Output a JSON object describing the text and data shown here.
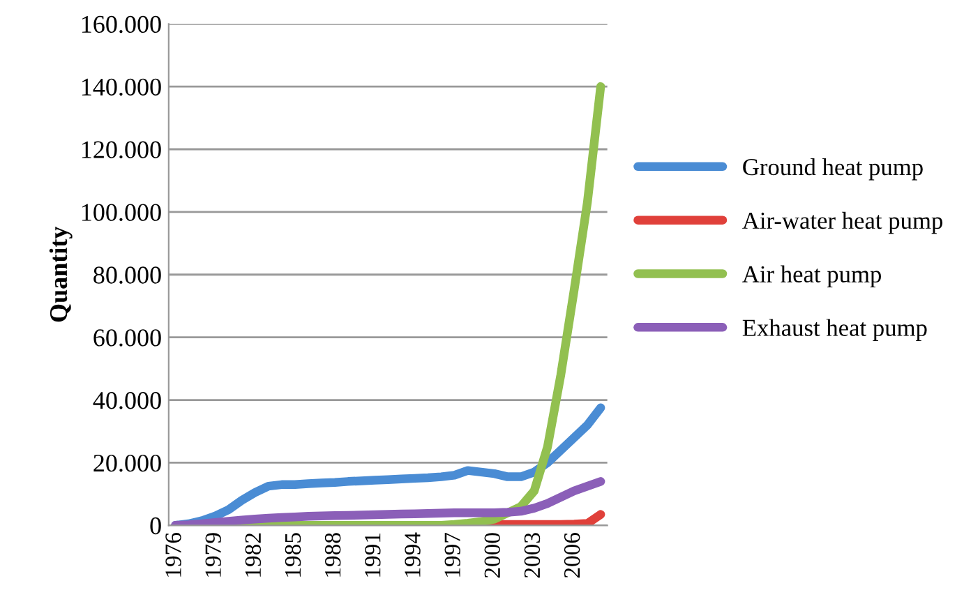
{
  "chart_data": {
    "type": "line",
    "ylabel": "Quantity",
    "categories": [
      "1976",
      null,
      null,
      "1979",
      null,
      null,
      "1982",
      null,
      null,
      "1985",
      null,
      null,
      "1988",
      null,
      null,
      "1991",
      null,
      null,
      "1994",
      null,
      null,
      "1997",
      null,
      null,
      "2000",
      null,
      null,
      "2003",
      null,
      null,
      "2006",
      null,
      null
    ],
    "series": [
      {
        "name": "Ground heat pump",
        "color": "#4a8cd4",
        "values": [
          0,
          500,
          1500,
          3000,
          5000,
          8000,
          10500,
          12500,
          13000,
          13000,
          13300,
          13500,
          13700,
          14000,
          14200,
          14400,
          14600,
          14800,
          15000,
          15200,
          15500,
          16000,
          17500,
          17000,
          16500,
          15500,
          15500,
          17000,
          20000,
          24000,
          28000,
          32000,
          37500
        ]
      },
      {
        "name": "Air-water heat pump",
        "color": "#e0403a",
        "values": [
          null,
          null,
          null,
          null,
          null,
          null,
          null,
          null,
          null,
          null,
          null,
          null,
          null,
          null,
          null,
          null,
          null,
          null,
          null,
          null,
          null,
          0,
          100,
          200,
          300,
          300,
          300,
          300,
          300,
          300,
          400,
          600,
          3500
        ]
      },
      {
        "name": "Air heat pump",
        "color": "#92c050",
        "values": [
          null,
          null,
          null,
          null,
          0,
          0,
          0,
          0,
          0,
          0,
          0,
          0,
          0,
          0,
          0,
          0,
          0,
          0,
          0,
          0,
          0,
          300,
          700,
          1200,
          2000,
          4000,
          6000,
          11000,
          25000,
          48000,
          75000,
          103000,
          140000
        ]
      },
      {
        "name": "Exhaust heat pump",
        "color": "#8b5fb8",
        "values": [
          0,
          200,
          500,
          900,
          1300,
          1700,
          2000,
          2300,
          2500,
          2700,
          2900,
          3000,
          3100,
          3200,
          3300,
          3400,
          3500,
          3600,
          3700,
          3800,
          3900,
          4000,
          4000,
          4000,
          4000,
          4200,
          4500,
          5500,
          7000,
          9000,
          11000,
          12500,
          14000
        ]
      }
    ],
    "ylim": [
      0,
      160000
    ],
    "yticks": [
      {
        "value": 0,
        "label": "0"
      },
      {
        "value": 20000,
        "label": "20.000"
      },
      {
        "value": 40000,
        "label": "40.000"
      },
      {
        "value": 60000,
        "label": "60.000"
      },
      {
        "value": 80000,
        "label": "80.000"
      },
      {
        "value": 100000,
        "label": "100.000"
      },
      {
        "value": 120000,
        "label": "120.000"
      },
      {
        "value": 140000,
        "label": "140.000"
      },
      {
        "value": 160000,
        "label": "160.000"
      }
    ],
    "grid": "y",
    "legend": "right",
    "marker": "none",
    "line_style": "solid"
  }
}
